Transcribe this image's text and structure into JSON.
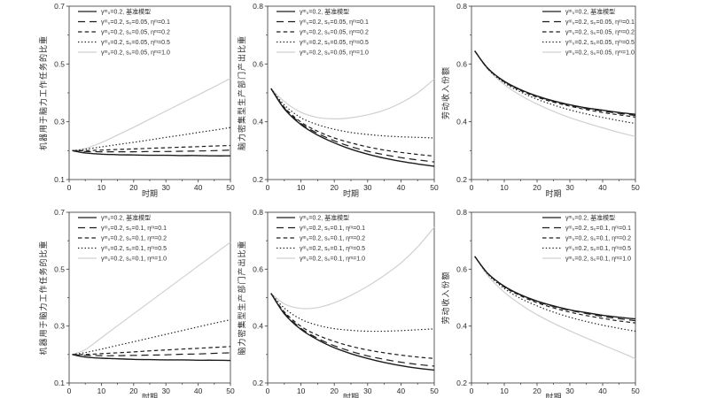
{
  "figure": {
    "background": "#ffffff",
    "xlabel": "时期",
    "columns_ylabels": [
      "机器用于脑力工作任务的比重",
      "脑力密集型生产部门产出比重",
      "劳动收入份额"
    ]
  },
  "colors": {
    "line_dark": "#1c1c1c",
    "line_light": "#d0d0d0",
    "axis": "#4a4a4a",
    "text": "#2b2b2b"
  },
  "chart_data": [
    {
      "id": "top-left",
      "type": "line",
      "title": "",
      "xlabel": "时期",
      "ylabel": "机器用于脑力工作任务的比重",
      "xlim": [
        0,
        50
      ],
      "ylim": [
        0.1,
        0.7
      ],
      "xticks": [
        0,
        10,
        20,
        30,
        40,
        50
      ],
      "yticks": [
        0.1,
        0.3,
        0.5,
        0.7
      ],
      "grid": false,
      "legend_position": "northwest",
      "x": [
        1,
        5,
        10,
        15,
        20,
        25,
        30,
        35,
        40,
        45,
        50
      ],
      "series": [
        {
          "label": "γᵐ₀=0.2, 基准模型",
          "dash": "solid",
          "shade": "dark",
          "values": [
            0.2,
            0.192,
            0.188,
            0.186,
            0.185,
            0.184,
            0.184,
            0.183,
            0.183,
            0.182,
            0.182
          ]
        },
        {
          "label": "γᵐ₀=0.2, s₀=0.05, ηᵐ=0.1",
          "dash": "longdash",
          "shade": "dark",
          "values": [
            0.2,
            0.197,
            0.196,
            0.196,
            0.196,
            0.197,
            0.197,
            0.198,
            0.199,
            0.2,
            0.202
          ]
        },
        {
          "label": "γᵐ₀=0.2, s₀=0.05, ηᵐ=0.2",
          "dash": "dash",
          "shade": "dark",
          "values": [
            0.2,
            0.2,
            0.202,
            0.204,
            0.206,
            0.208,
            0.21,
            0.212,
            0.214,
            0.216,
            0.218
          ]
        },
        {
          "label": "γᵐ₀=0.2, s₀=0.05, ηᵐ=0.5",
          "dash": "dot",
          "shade": "dark",
          "values": [
            0.2,
            0.205,
            0.213,
            0.221,
            0.229,
            0.237,
            0.246,
            0.254,
            0.263,
            0.271,
            0.28
          ]
        },
        {
          "label": "γᵐ₀=0.2, s₀=0.05, ηᵐ=1.0",
          "dash": "solid",
          "shade": "light",
          "values": [
            0.2,
            0.207,
            0.228,
            0.254,
            0.281,
            0.309,
            0.337,
            0.365,
            0.393,
            0.421,
            0.45
          ]
        }
      ]
    },
    {
      "id": "top-middle",
      "type": "line",
      "title": "",
      "xlabel": "时期",
      "ylabel": "脑力密集型生产部门产出比重",
      "xlim": [
        0,
        50
      ],
      "ylim": [
        0.2,
        0.8
      ],
      "xticks": [
        0,
        10,
        20,
        30,
        40,
        50
      ],
      "yticks": [
        0.2,
        0.4,
        0.6,
        0.8
      ],
      "grid": false,
      "legend_position": "northwest",
      "x": [
        1,
        5,
        10,
        15,
        20,
        25,
        30,
        35,
        40,
        45,
        50
      ],
      "series": [
        {
          "label": "γᵐ₀=0.2, 基准模型",
          "dash": "solid",
          "shade": "dark",
          "values": [
            0.515,
            0.445,
            0.39,
            0.354,
            0.327,
            0.305,
            0.288,
            0.274,
            0.263,
            0.254,
            0.246
          ]
        },
        {
          "label": "γᵐ₀=0.2, s₀=0.05, ηᵐ=0.1",
          "dash": "longdash",
          "shade": "dark",
          "values": [
            0.515,
            0.447,
            0.394,
            0.36,
            0.334,
            0.314,
            0.298,
            0.286,
            0.276,
            0.268,
            0.261
          ]
        },
        {
          "label": "γᵐ₀=0.2, s₀=0.05, ηᵐ=0.2",
          "dash": "dash",
          "shade": "dark",
          "values": [
            0.515,
            0.45,
            0.399,
            0.367,
            0.344,
            0.327,
            0.313,
            0.302,
            0.294,
            0.287,
            0.281
          ]
        },
        {
          "label": "γᵐ₀=0.2, s₀=0.05, ηᵐ=0.5",
          "dash": "dot",
          "shade": "dark",
          "values": [
            0.515,
            0.458,
            0.414,
            0.39,
            0.374,
            0.363,
            0.356,
            0.351,
            0.348,
            0.346,
            0.344
          ]
        },
        {
          "label": "γᵐ₀=0.2, s₀=0.05, ηᵐ=1.0",
          "dash": "solid",
          "shade": "light",
          "values": [
            0.515,
            0.47,
            0.433,
            0.415,
            0.41,
            0.414,
            0.424,
            0.44,
            0.465,
            0.5,
            0.548
          ]
        }
      ]
    },
    {
      "id": "top-right",
      "type": "line",
      "title": "",
      "xlabel": "时期",
      "ylabel": "劳动收入份额",
      "xlim": [
        0,
        50
      ],
      "ylim": [
        0.2,
        0.8
      ],
      "xticks": [
        0,
        10,
        20,
        30,
        40,
        50
      ],
      "yticks": [
        0.2,
        0.4,
        0.6,
        0.8
      ],
      "grid": false,
      "legend_position": "northeast",
      "x": [
        1,
        5,
        10,
        15,
        20,
        25,
        30,
        35,
        40,
        45,
        50
      ],
      "series": [
        {
          "label": "γᵐ₀=0.2, 基准模型",
          "dash": "solid",
          "shade": "dark",
          "values": [
            0.645,
            0.585,
            0.54,
            0.511,
            0.489,
            0.472,
            0.459,
            0.448,
            0.44,
            0.432,
            0.426
          ]
        },
        {
          "label": "γᵐ₀=0.2, s₀=0.05, ηᵐ=0.1",
          "dash": "longdash",
          "shade": "dark",
          "values": [
            0.645,
            0.585,
            0.539,
            0.51,
            0.488,
            0.471,
            0.457,
            0.446,
            0.437,
            0.429,
            0.422
          ]
        },
        {
          "label": "γᵐ₀=0.2, s₀=0.05, ηᵐ=0.2",
          "dash": "dash",
          "shade": "dark",
          "values": [
            0.645,
            0.584,
            0.538,
            0.508,
            0.485,
            0.468,
            0.454,
            0.442,
            0.432,
            0.424,
            0.416
          ]
        },
        {
          "label": "γᵐ₀=0.2, s₀=0.05, ηᵐ=0.5",
          "dash": "dot",
          "shade": "dark",
          "values": [
            0.645,
            0.583,
            0.535,
            0.503,
            0.478,
            0.458,
            0.441,
            0.427,
            0.415,
            0.404,
            0.394
          ]
        },
        {
          "label": "γᵐ₀=0.2, s₀=0.05, ηᵐ=1.0",
          "dash": "solid",
          "shade": "light",
          "values": [
            0.645,
            0.581,
            0.529,
            0.491,
            0.461,
            0.436,
            0.414,
            0.396,
            0.379,
            0.363,
            0.349
          ]
        }
      ]
    },
    {
      "id": "bottom-left",
      "type": "line",
      "title": "",
      "xlabel": "时期",
      "ylabel": "机器用于脑力工作任务的比重",
      "xlim": [
        0,
        50
      ],
      "ylim": [
        0.1,
        0.7
      ],
      "xticks": [
        0,
        10,
        20,
        30,
        40,
        50
      ],
      "yticks": [
        0.1,
        0.3,
        0.5,
        0.7
      ],
      "grid": false,
      "legend_position": "northwest",
      "x": [
        1,
        5,
        10,
        15,
        20,
        25,
        30,
        35,
        40,
        45,
        50
      ],
      "series": [
        {
          "label": "γᵐ₀=0.2, 基准模型",
          "dash": "solid",
          "shade": "dark",
          "values": [
            0.2,
            0.191,
            0.187,
            0.185,
            0.183,
            0.182,
            0.181,
            0.181,
            0.18,
            0.18,
            0.179
          ]
        },
        {
          "label": "γᵐ₀=0.2, s₀=0.1, ηᵐ=0.1",
          "dash": "longdash",
          "shade": "dark",
          "values": [
            0.2,
            0.197,
            0.196,
            0.196,
            0.197,
            0.198,
            0.199,
            0.201,
            0.202,
            0.204,
            0.206
          ]
        },
        {
          "label": "γᵐ₀=0.2, s₀=0.1, ηᵐ=0.2",
          "dash": "dash",
          "shade": "dark",
          "values": [
            0.2,
            0.2,
            0.203,
            0.206,
            0.209,
            0.213,
            0.216,
            0.219,
            0.222,
            0.225,
            0.228
          ]
        },
        {
          "label": "γᵐ₀=0.2, s₀=0.1, ηᵐ=0.5",
          "dash": "dot",
          "shade": "dark",
          "values": [
            0.2,
            0.207,
            0.219,
            0.232,
            0.245,
            0.258,
            0.271,
            0.284,
            0.297,
            0.31,
            0.322
          ]
        },
        {
          "label": "γᵐ₀=0.2, s₀=0.1, ηᵐ=1.0",
          "dash": "solid",
          "shade": "light",
          "values": [
            0.2,
            0.217,
            0.259,
            0.301,
            0.343,
            0.385,
            0.427,
            0.469,
            0.511,
            0.553,
            0.595
          ]
        }
      ]
    },
    {
      "id": "bottom-middle",
      "type": "line",
      "title": "",
      "xlabel": "时期",
      "ylabel": "脑力密集型生产部门产出比重",
      "xlim": [
        0,
        50
      ],
      "ylim": [
        0.2,
        0.8
      ],
      "xticks": [
        0,
        10,
        20,
        30,
        40,
        50
      ],
      "yticks": [
        0.2,
        0.4,
        0.6,
        0.8
      ],
      "grid": false,
      "legend_position": "northwest",
      "x": [
        1,
        5,
        10,
        15,
        20,
        25,
        30,
        35,
        40,
        45,
        50
      ],
      "series": [
        {
          "label": "γᵐ₀=0.2, 基准模型",
          "dash": "solid",
          "shade": "dark",
          "values": [
            0.515,
            0.443,
            0.388,
            0.352,
            0.324,
            0.303,
            0.286,
            0.272,
            0.261,
            0.252,
            0.245
          ]
        },
        {
          "label": "γᵐ₀=0.2, s₀=0.1, ηᵐ=0.1",
          "dash": "longdash",
          "shade": "dark",
          "values": [
            0.515,
            0.446,
            0.392,
            0.357,
            0.331,
            0.311,
            0.295,
            0.283,
            0.273,
            0.265,
            0.259
          ]
        },
        {
          "label": "γᵐ₀=0.2, s₀=0.1, ηᵐ=0.2",
          "dash": "dash",
          "shade": "dark",
          "values": [
            0.515,
            0.45,
            0.399,
            0.368,
            0.346,
            0.329,
            0.316,
            0.306,
            0.298,
            0.291,
            0.286
          ]
        },
        {
          "label": "γᵐ₀=0.2, s₀=0.1, ηᵐ=0.5",
          "dash": "dot",
          "shade": "dark",
          "values": [
            0.515,
            0.463,
            0.424,
            0.403,
            0.391,
            0.385,
            0.382,
            0.382,
            0.384,
            0.387,
            0.39
          ]
        },
        {
          "label": "γᵐ₀=0.2, s₀=0.1, ηᵐ=1.0",
          "dash": "solid",
          "shade": "light",
          "values": [
            0.515,
            0.478,
            0.462,
            0.465,
            0.482,
            0.508,
            0.54,
            0.578,
            0.622,
            0.678,
            0.748
          ]
        }
      ]
    },
    {
      "id": "bottom-right",
      "type": "line",
      "title": "",
      "xlabel": "时期",
      "ylabel": "劳动收入份额",
      "xlim": [
        0,
        50
      ],
      "ylim": [
        0.2,
        0.8
      ],
      "xticks": [
        0,
        10,
        20,
        30,
        40,
        50
      ],
      "yticks": [
        0.2,
        0.4,
        0.6,
        0.8
      ],
      "grid": false,
      "legend_position": "northeast",
      "x": [
        1,
        5,
        10,
        15,
        20,
        25,
        30,
        35,
        40,
        45,
        50
      ],
      "series": [
        {
          "label": "γᵐ₀=0.2, 基准模型",
          "dash": "solid",
          "shade": "dark",
          "values": [
            0.645,
            0.585,
            0.54,
            0.51,
            0.488,
            0.471,
            0.457,
            0.447,
            0.438,
            0.431,
            0.425
          ]
        },
        {
          "label": "γᵐ₀=0.2, s₀=0.1, ηᵐ=0.1",
          "dash": "longdash",
          "shade": "dark",
          "values": [
            0.645,
            0.585,
            0.539,
            0.509,
            0.486,
            0.469,
            0.455,
            0.444,
            0.434,
            0.426,
            0.419
          ]
        },
        {
          "label": "γᵐ₀=0.2, s₀=0.1, ηᵐ=0.2",
          "dash": "dash",
          "shade": "dark",
          "values": [
            0.645,
            0.584,
            0.537,
            0.506,
            0.482,
            0.464,
            0.449,
            0.437,
            0.427,
            0.418,
            0.411
          ]
        },
        {
          "label": "γᵐ₀=0.2, s₀=0.1, ηᵐ=0.5",
          "dash": "dot",
          "shade": "dark",
          "values": [
            0.645,
            0.582,
            0.532,
            0.497,
            0.471,
            0.449,
            0.431,
            0.416,
            0.403,
            0.392,
            0.382
          ]
        },
        {
          "label": "γᵐ₀=0.2, s₀=0.1, ηᵐ=1.0",
          "dash": "solid",
          "shade": "light",
          "values": [
            0.645,
            0.577,
            0.519,
            0.476,
            0.44,
            0.41,
            0.383,
            0.358,
            0.334,
            0.31,
            0.285
          ]
        }
      ]
    }
  ]
}
